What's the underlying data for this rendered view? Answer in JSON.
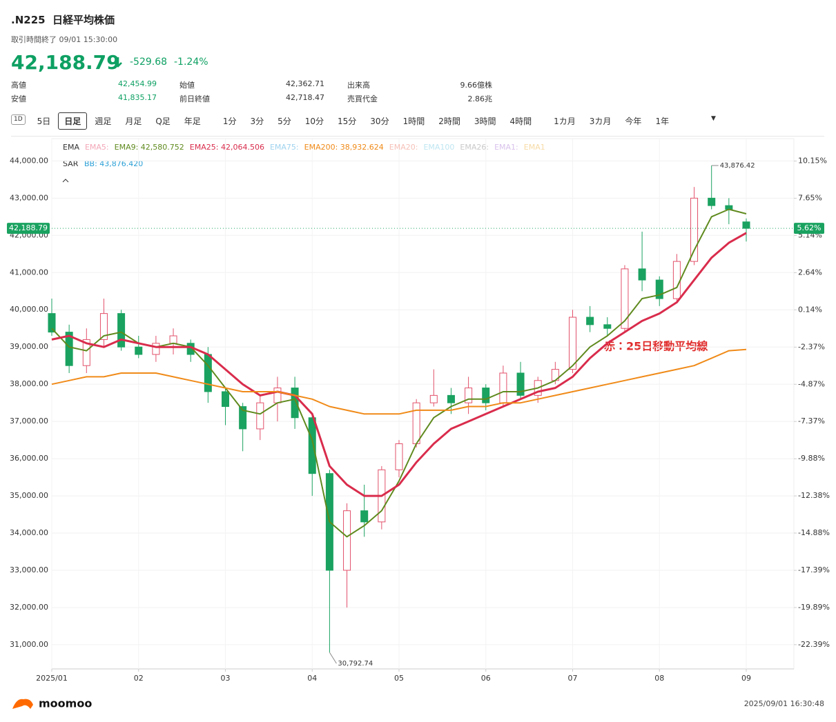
{
  "header": {
    "ticker": ".N225",
    "name": "日経平均株価",
    "status": "取引時間終了 09/01 15:30:00",
    "price": "42,188.79",
    "change": "-529.68",
    "change_pct": "-1.24%"
  },
  "stats": [
    [
      "高値",
      "42,454.99"
    ],
    [
      "始値",
      "42,362.71"
    ],
    [
      "出来高",
      "9.66億株"
    ],
    [
      "安値",
      "41,835.17"
    ],
    [
      "前日終値",
      "42,718.47"
    ],
    [
      "売買代金",
      "2.86兆"
    ]
  ],
  "tabs": [
    "1D",
    "5日",
    "日足",
    "週足",
    "月足",
    "Q足",
    "年足",
    "1分",
    "3分",
    "5分",
    "10分",
    "15分",
    "30分",
    "1時間",
    "2時間",
    "3時間",
    "4時間",
    "1カ月",
    "3カ月",
    "今年",
    "1年"
  ],
  "selected_tab": 2,
  "chart_data": {
    "type": "candlestick",
    "categories": [
      "2025/01",
      null,
      null,
      null,
      null,
      "02",
      null,
      null,
      null,
      null,
      "03",
      null,
      null,
      null,
      null,
      "04",
      null,
      null,
      null,
      null,
      "05",
      null,
      null,
      null,
      null,
      "06",
      null,
      null,
      null,
      null,
      "07",
      null,
      null,
      null,
      null,
      "08",
      null,
      null,
      null,
      null,
      "09"
    ],
    "open": [
      39900,
      39400,
      38500,
      39200,
      39900,
      39000,
      38800,
      39100,
      39100,
      38800,
      37800,
      37400,
      36800,
      37500,
      37900,
      37100,
      35600,
      33000,
      34600,
      34300,
      35700,
      36400,
      37500,
      37700,
      37500,
      37900,
      37500,
      38300,
      37700,
      38100,
      38400,
      39800,
      39600,
      39500,
      41100,
      40800,
      40300,
      41300,
      43000,
      42800,
      42362.71
    ],
    "high": [
      40300,
      39600,
      39500,
      40300,
      40000,
      39300,
      39300,
      39500,
      39200,
      39000,
      37900,
      37500,
      37700,
      38200,
      38200,
      37200,
      35700,
      34800,
      35300,
      35800,
      36500,
      37600,
      38400,
      37900,
      38200,
      38000,
      38500,
      38600,
      38200,
      38600,
      40000,
      40100,
      39800,
      41200,
      42100,
      40900,
      41500,
      43300,
      43876.42,
      43000,
      42454.99
    ],
    "low": [
      39300,
      38300,
      38300,
      39000,
      38900,
      38700,
      38600,
      38800,
      38600,
      37500,
      36900,
      36200,
      36500,
      37000,
      36800,
      35000,
      30792.74,
      32000,
      33900,
      34100,
      35500,
      36300,
      37400,
      37200,
      37200,
      37300,
      37400,
      37600,
      37500,
      38000,
      38300,
      39400,
      39300,
      39400,
      40500,
      40100,
      40200,
      41200,
      42700,
      42300,
      41835.17
    ],
    "close": [
      39400,
      38500,
      39200,
      39900,
      39000,
      38800,
      39100,
      39300,
      38800,
      37800,
      37400,
      36800,
      37500,
      37900,
      37100,
      35600,
      33000,
      34600,
      34300,
      35700,
      36400,
      37500,
      37700,
      37500,
      37900,
      37500,
      38300,
      37700,
      38100,
      38400,
      39800,
      39600,
      39500,
      41100,
      40800,
      40300,
      41300,
      43000,
      42800,
      42700,
      42188.79
    ],
    "up_color": "#e2506a",
    "down_color": "#1aa260",
    "series": [
      {
        "name": "EMA9: 42,580.752",
        "color": "#5f8a1e",
        "values": [
          39500,
          39000,
          38900,
          39300,
          39400,
          39100,
          39000,
          39100,
          39000,
          38500,
          37900,
          37300,
          37200,
          37500,
          37600,
          36500,
          34300,
          33900,
          34200,
          34600,
          35400,
          36400,
          37100,
          37400,
          37600,
          37600,
          37800,
          37800,
          37900,
          38100,
          38500,
          39000,
          39300,
          39700,
          40300,
          40400,
          40600,
          41600,
          42500,
          42700,
          42580.752
        ]
      },
      {
        "name": "EMA25: 42,064.506",
        "color": "#d92c4c",
        "values": [
          39200,
          39300,
          39100,
          39000,
          39200,
          39100,
          39000,
          39000,
          39000,
          38800,
          38400,
          38000,
          37700,
          37800,
          37700,
          37200,
          35800,
          35300,
          35000,
          35000,
          35300,
          35900,
          36400,
          36800,
          37000,
          37200,
          37400,
          37600,
          37800,
          37900,
          38200,
          38700,
          39100,
          39400,
          39700,
          39900,
          40200,
          40800,
          41400,
          41800,
          42064.506
        ]
      },
      {
        "name": "EMA200: 38,932.624",
        "color": "#f08a18",
        "values": [
          38000,
          38100,
          38200,
          38200,
          38300,
          38300,
          38300,
          38200,
          38100,
          38000,
          37900,
          37800,
          37800,
          37800,
          37700,
          37600,
          37400,
          37300,
          37200,
          37200,
          37200,
          37300,
          37300,
          37300,
          37400,
          37400,
          37500,
          37500,
          37600,
          37700,
          37800,
          37900,
          38000,
          38100,
          38200,
          38300,
          38400,
          38500,
          38700,
          38900,
          38932.624
        ]
      }
    ],
    "legend_title": "EMA",
    "inactive_legend": [
      {
        "text": "EMA5:",
        "color": "#f3a7b8"
      },
      {
        "text": "EMA75:",
        "color": "#9fd3ef"
      },
      {
        "text": "EMA20:",
        "color": "#f6c0b8"
      },
      {
        "text": "EMA100",
        "color": "#bfe6f2"
      },
      {
        "text": "EMA26:",
        "color": "#c9c9c9"
      },
      {
        "text": "EMA1:",
        "color": "#d9c2ec"
      },
      {
        "text": "EMA1",
        "color": "#f7dba6"
      }
    ],
    "sar_label": "SAR",
    "bb_label": "BB: 43,876.420",
    "ylim": [
      30350,
      44600
    ],
    "yticks": [
      {
        "value": 31000,
        "label": "31,000.00"
      },
      {
        "value": 32000,
        "label": "32,000.00"
      },
      {
        "value": 33000,
        "label": "33,000.00"
      },
      {
        "value": 34000,
        "label": "34,000.00"
      },
      {
        "value": 35000,
        "label": "35,000.00"
      },
      {
        "value": 36000,
        "label": "36,000.00"
      },
      {
        "value": 37000,
        "label": "37,000.00"
      },
      {
        "value": 38000,
        "label": "38,000.00"
      },
      {
        "value": 39000,
        "label": "39,000.00"
      },
      {
        "value": 40000,
        "label": "40,000.00"
      },
      {
        "value": 41000,
        "label": "41,000.00"
      },
      {
        "value": 42000,
        "label": "42,000.00"
      },
      {
        "value": 43000,
        "label": "43,000.00"
      },
      {
        "value": 44000,
        "label": "44,000.00"
      }
    ],
    "y2lim": [
      -24.02,
      11.66
    ],
    "y2ticks": [
      {
        "value": -22.39,
        "label": "-22.39%"
      },
      {
        "value": -19.89,
        "label": "-19.89%"
      },
      {
        "value": -17.39,
        "label": "-17.39%"
      },
      {
        "value": -14.88,
        "label": "-14.88%"
      },
      {
        "value": -12.38,
        "label": "-12.38%"
      },
      {
        "value": -9.88,
        "label": "-9.88%"
      },
      {
        "value": -7.37,
        "label": "-7.37%"
      },
      {
        "value": -4.87,
        "label": "-4.87%"
      },
      {
        "value": -2.37,
        "label": "-2.37%"
      },
      {
        "value": 0.14,
        "label": "0.14%"
      },
      {
        "value": 2.64,
        "label": "2.64%"
      },
      {
        "value": 5.14,
        "label": "5.14%"
      },
      {
        "value": 7.65,
        "label": "7.65%"
      },
      {
        "value": 10.15,
        "label": "10.15%"
      }
    ],
    "last_price": {
      "value": 42188.79,
      "label": "42,188.79"
    },
    "last_change": {
      "value": 5.62,
      "label": "5.62%"
    },
    "max_label": {
      "value": 43876.42,
      "label": "43,876.42"
    },
    "min_label": {
      "value": 30792.74,
      "label": "30,792.74"
    },
    "annotation": "赤：25日移動平均線",
    "grid": true
  },
  "footer": {
    "brand": "moomoo",
    "timestamp": "2025/09/01 16:30:48"
  }
}
